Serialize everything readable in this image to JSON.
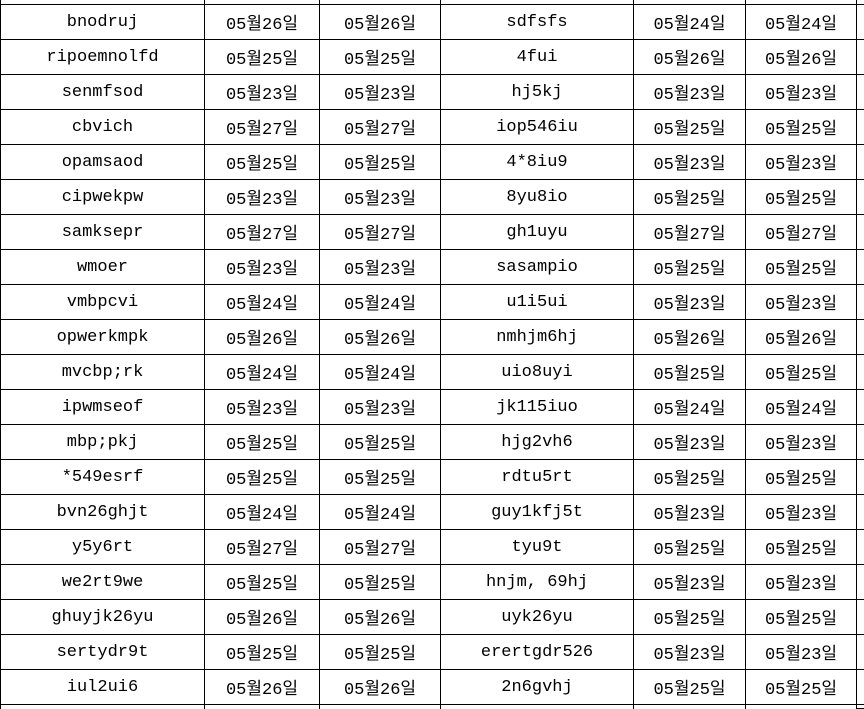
{
  "colors": {
    "grid": "#000000",
    "background": "#ffffff",
    "text": "#000000"
  },
  "table": {
    "column_roles": [
      "name",
      "date",
      "date",
      "name",
      "date",
      "date"
    ],
    "rows": [
      [
        "bnodruj",
        "05월26일",
        "05월26일",
        "sdfsfs",
        "05월24일",
        "05월24일"
      ],
      [
        "ripoemnolfd",
        "05월25일",
        "05월25일",
        "4fui",
        "05월26일",
        "05월26일"
      ],
      [
        "senmfsod",
        "05월23일",
        "05월23일",
        "hj5kj",
        "05월23일",
        "05월23일"
      ],
      [
        "cbvich",
        "05월27일",
        "05월27일",
        "iop546iu",
        "05월25일",
        "05월25일"
      ],
      [
        "opamsaod",
        "05월25일",
        "05월25일",
        "4*8iu9",
        "05월23일",
        "05월23일"
      ],
      [
        "cipwekpw",
        "05월23일",
        "05월23일",
        "8yu8io",
        "05월25일",
        "05월25일"
      ],
      [
        "samksepr",
        "05월27일",
        "05월27일",
        "gh1uyu",
        "05월27일",
        "05월27일"
      ],
      [
        "wmoer",
        "05월23일",
        "05월23일",
        "sasampio",
        "05월25일",
        "05월25일"
      ],
      [
        "vmbpcvi",
        "05월24일",
        "05월24일",
        "u1i5ui",
        "05월23일",
        "05월23일"
      ],
      [
        "opwerkmpk",
        "05월26일",
        "05월26일",
        "nmhjm6hj",
        "05월26일",
        "05월26일"
      ],
      [
        "mvcbp;rk",
        "05월24일",
        "05월24일",
        "uio8uyi",
        "05월25일",
        "05월25일"
      ],
      [
        "ipwmseof",
        "05월23일",
        "05월23일",
        "jk115iuo",
        "05월24일",
        "05월24일"
      ],
      [
        "mbp;pkj",
        "05월25일",
        "05월25일",
        "hjg2vh6",
        "05월23일",
        "05월23일"
      ],
      [
        "*549esrf",
        "05월25일",
        "05월25일",
        "rdtu5rt",
        "05월25일",
        "05월25일"
      ],
      [
        "bvn26ghjt",
        "05월24일",
        "05월24일",
        "guy1kfj5t",
        "05월23일",
        "05월23일"
      ],
      [
        "y5y6rt",
        "05월27일",
        "05월27일",
        "tyu9t",
        "05월25일",
        "05월25일"
      ],
      [
        "we2rt9we",
        "05월25일",
        "05월25일",
        "hnjm, 69hj",
        "05월23일",
        "05월23일"
      ],
      [
        "ghuyjk26yu",
        "05월26일",
        "05월26일",
        "uyk26yu",
        "05월25일",
        "05월25일"
      ],
      [
        "sertydr9t",
        "05월25일",
        "05월25일",
        "erertgdr526",
        "05월23일",
        "05월23일"
      ],
      [
        "iul2ui6",
        "05월26일",
        "05월26일",
        "2n6gvhj",
        "05월25일",
        "05월25일"
      ]
    ]
  }
}
